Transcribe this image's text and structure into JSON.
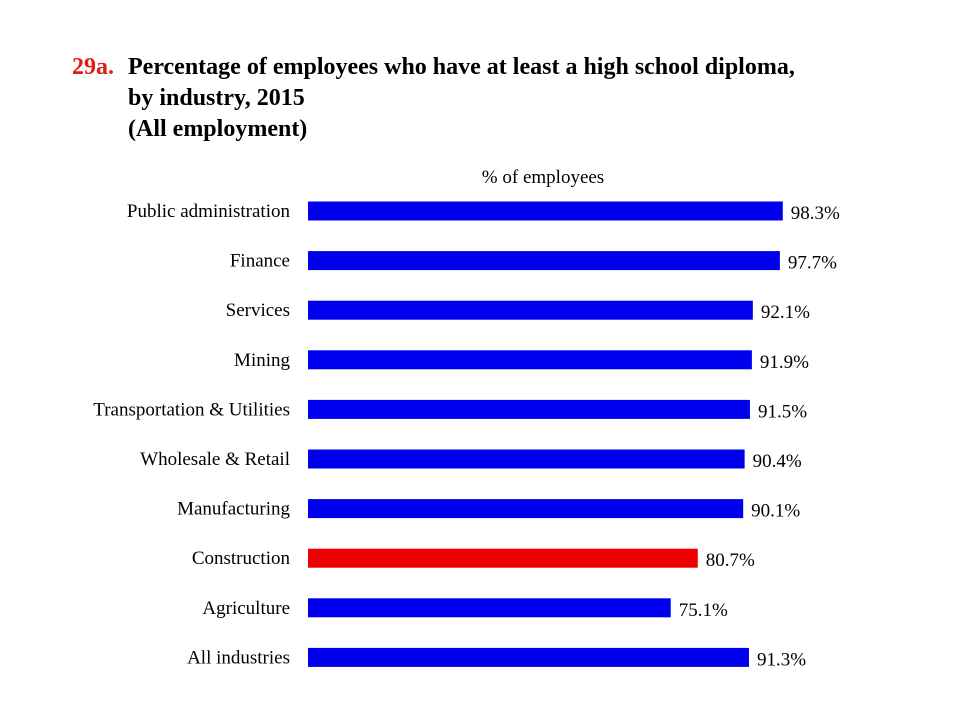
{
  "title": {
    "number": "29a.",
    "line1": "Percentage of employees who have at least a high school diploma,",
    "line2": "by industry, 2015",
    "line3": "(All employment)"
  },
  "colors": {
    "title_number": "#e31b1b",
    "default_bar": "#0000ee",
    "highlight_bar": "#ee0000"
  },
  "chart_data": {
    "type": "bar",
    "orientation": "horizontal",
    "axis_label": "% of employees",
    "categories": [
      "Public administration",
      "Finance",
      "Services",
      "Mining",
      "Transportation & Utilities",
      "Wholesale & Retail",
      "Manufacturing",
      "Construction",
      "Agriculture",
      "All industries"
    ],
    "values": [
      98.3,
      97.7,
      92.1,
      91.9,
      91.5,
      90.4,
      90.1,
      80.7,
      75.1,
      91.3
    ],
    "value_labels": [
      "98.3%",
      "97.7%",
      "92.1%",
      "91.9%",
      "91.5%",
      "90.4%",
      "90.1%",
      "80.7%",
      "75.1%",
      "91.3%"
    ],
    "highlight": "Construction",
    "xlim": [
      0,
      100
    ],
    "grid": false,
    "legend": false
  }
}
